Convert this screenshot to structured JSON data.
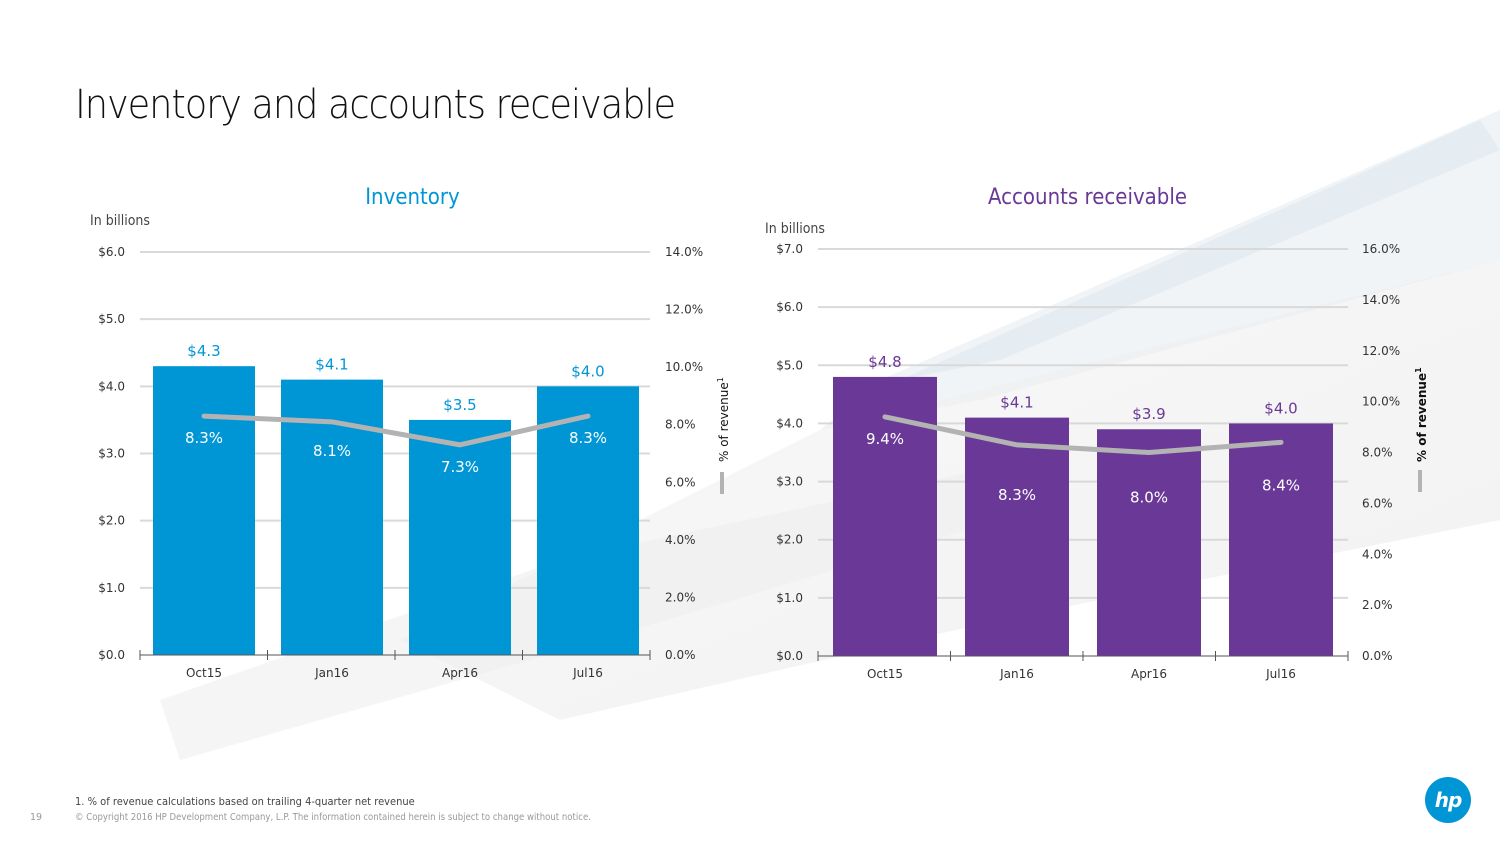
{
  "slide": {
    "title": "Inventory and accounts receivable",
    "footnote": "1. % of revenue calculations based on trailing 4-quarter net revenue",
    "copyright": "© Copyright 2016 HP Development Company, L.P. The information contained herein is subject to change without notice.",
    "page_number": "19",
    "logo_text": "hp",
    "colors": {
      "inventory": "#0096d6",
      "receivables": "#6a3997",
      "line": "#b3b3b3",
      "grid": "#d9d9d9",
      "logo": "#0096d6"
    }
  },
  "chart_data": [
    {
      "type": "bar",
      "title": "Inventory",
      "unit_label": "In billions",
      "categories": [
        "Oct15",
        "Jan16",
        "Apr16",
        "Jul16"
      ],
      "series": [
        {
          "name": "Inventory",
          "axis": "left",
          "values": [
            4.3,
            4.1,
            3.5,
            4.0
          ],
          "labels": [
            "$4.3",
            "$4.1",
            "$3.5",
            "$4.0"
          ]
        },
        {
          "name": "% of revenue",
          "type": "line",
          "axis": "right",
          "values": [
            8.3,
            8.1,
            7.3,
            8.3
          ],
          "labels": [
            "8.3%",
            "8.1%",
            "7.3%",
            "8.3%"
          ]
        }
      ],
      "y_left": {
        "range": [
          0,
          6
        ],
        "ticks": [
          "$0.0",
          "$1.0",
          "$2.0",
          "$3.0",
          "$4.0",
          "$5.0",
          "$6.0"
        ]
      },
      "y_right": {
        "range": [
          0,
          14
        ],
        "ticks": [
          "0.0%",
          "2.0%",
          "4.0%",
          "6.0%",
          "8.0%",
          "10.0%",
          "12.0%",
          "14.0%"
        ],
        "label": "% of revenue",
        "label_superscript": "1"
      },
      "grid": true
    },
    {
      "type": "bar",
      "title": "Accounts receivable",
      "unit_label": "In billions",
      "categories": [
        "Oct15",
        "Jan16",
        "Apr16",
        "Jul16"
      ],
      "series": [
        {
          "name": "Accounts receivable",
          "axis": "left",
          "values": [
            4.8,
            4.1,
            3.9,
            4.0
          ],
          "labels": [
            "$4.8",
            "$4.1",
            "$3.9",
            "$4.0"
          ]
        },
        {
          "name": "% of revenue",
          "type": "line",
          "axis": "right",
          "values": [
            9.4,
            8.3,
            8.0,
            8.4
          ],
          "labels": [
            "9.4%",
            "8.3%",
            "8.0%",
            "8.4%"
          ]
        }
      ],
      "y_left": {
        "range": [
          0,
          7
        ],
        "ticks": [
          "$0.0",
          "$1.0",
          "$2.0",
          "$3.0",
          "$4.0",
          "$5.0",
          "$6.0",
          "$7.0"
        ]
      },
      "y_right": {
        "range": [
          0,
          16
        ],
        "ticks": [
          "0.0%",
          "2.0%",
          "4.0%",
          "6.0%",
          "8.0%",
          "10.0%",
          "12.0%",
          "14.0%",
          "16.0%"
        ],
        "label": "% of revenue",
        "label_superscript": "1"
      },
      "grid": true
    }
  ]
}
